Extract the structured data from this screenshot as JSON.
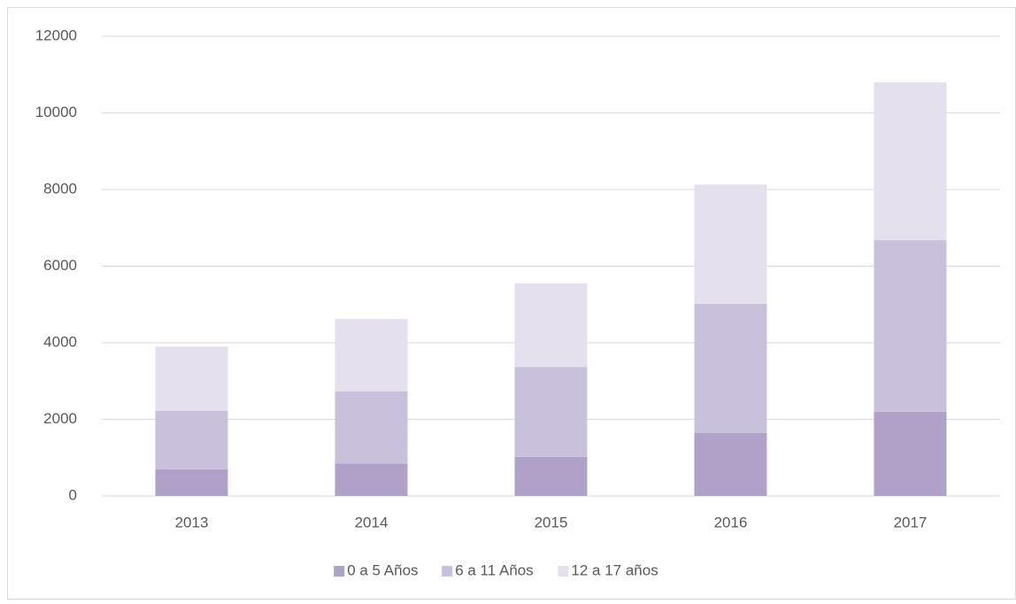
{
  "chart_data": {
    "type": "stacked_bar",
    "categories": [
      "2013",
      "2014",
      "2015",
      "2016",
      "2017"
    ],
    "series": [
      {
        "name": "0 a 5 Años",
        "color": "#b0a1c9",
        "values": [
          700,
          850,
          1020,
          1650,
          2200
        ]
      },
      {
        "name": "6 a 11 Años",
        "color": "#c9c0dc",
        "values": [
          1520,
          1880,
          2350,
          3370,
          4480
        ]
      },
      {
        "name": "12 a 17 años",
        "color": "#e5e0ee",
        "values": [
          1680,
          1890,
          2180,
          3110,
          4120
        ]
      }
    ],
    "ylim": [
      0,
      12000
    ],
    "yticks": [
      0,
      2000,
      4000,
      6000,
      8000,
      10000,
      12000
    ],
    "grid": true,
    "legend": "bottom"
  }
}
